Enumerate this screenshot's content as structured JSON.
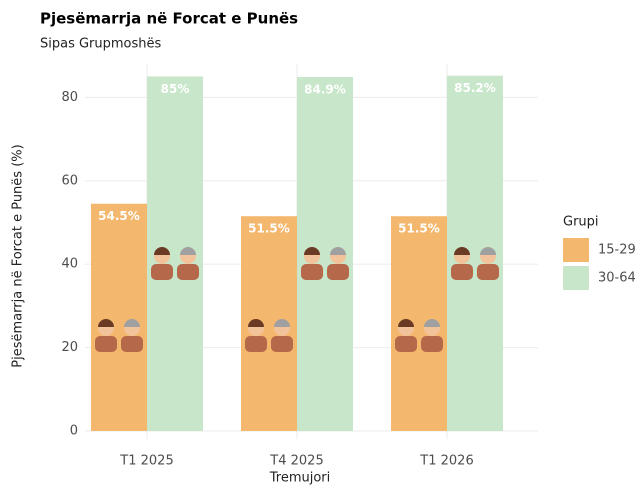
{
  "chart_data": {
    "type": "bar",
    "title": "Pjesëmarrja në Forcat e Punës",
    "subtitle": "Sipas Grupmoshës",
    "x_label": "Tremujori",
    "y_label": "Pjesëmarrja në Forcat e Punës (%)",
    "categories": [
      "T1 2025",
      "T4 2025",
      "T1 2026"
    ],
    "series": [
      {
        "name": "15-29",
        "color": "#f4b76e",
        "values": [
          54.5,
          51.5,
          51.5
        ],
        "value_labels": [
          "54.5%",
          "51.5%",
          "51.5%"
        ]
      },
      {
        "name": "30-64",
        "color": "#c8e6c9",
        "values": [
          85,
          84.9,
          85.2
        ],
        "value_labels": [
          "85%",
          "84.9%",
          "85.2%"
        ]
      }
    ],
    "legend_title": "Grupi",
    "legend": "right",
    "ylim": [
      0,
      88
    ],
    "yticks": [
      0,
      20,
      40,
      60,
      80
    ],
    "grid": true
  }
}
